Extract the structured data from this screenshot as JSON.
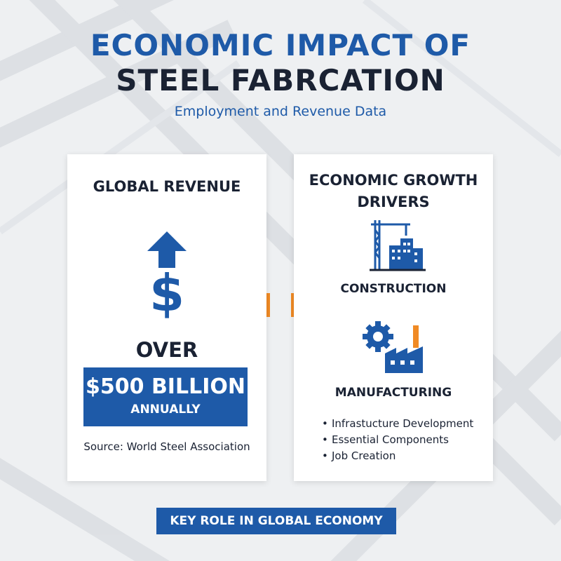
{
  "header": {
    "title_line1": "ECONOMIC IMPACT OF",
    "title_line2": "STEEL FABRCATION",
    "subtitle": "Employment and Revenue Data"
  },
  "revenue_card": {
    "heading": "GLOBAL REVENUE",
    "icon_arrow": "up-arrow-icon",
    "dollar_symbol": "$",
    "over_label": "OVER",
    "amount": "$500 BILLION",
    "period": "ANNUALLY",
    "source": "Source: World Steel Association"
  },
  "drivers_card": {
    "heading_line1": "ECONOMIC GROWTH",
    "heading_line2": "DRIVERS",
    "drivers": [
      {
        "label": "CONSTRUCTION",
        "icon": "crane-building-icon"
      },
      {
        "label": "MANUFACTURING",
        "icon": "gear-factory-icon"
      }
    ],
    "bullets": [
      "Infrastucture Development",
      "Essential Components",
      "Job Creation"
    ]
  },
  "footer": {
    "banner": "KEY ROLE IN GLOBAL ECONOMY"
  },
  "colors": {
    "primary_blue": "#1e5aa8",
    "dark_text": "#1a2233",
    "accent_orange": "#f08a24",
    "background": "#eef0f2"
  }
}
